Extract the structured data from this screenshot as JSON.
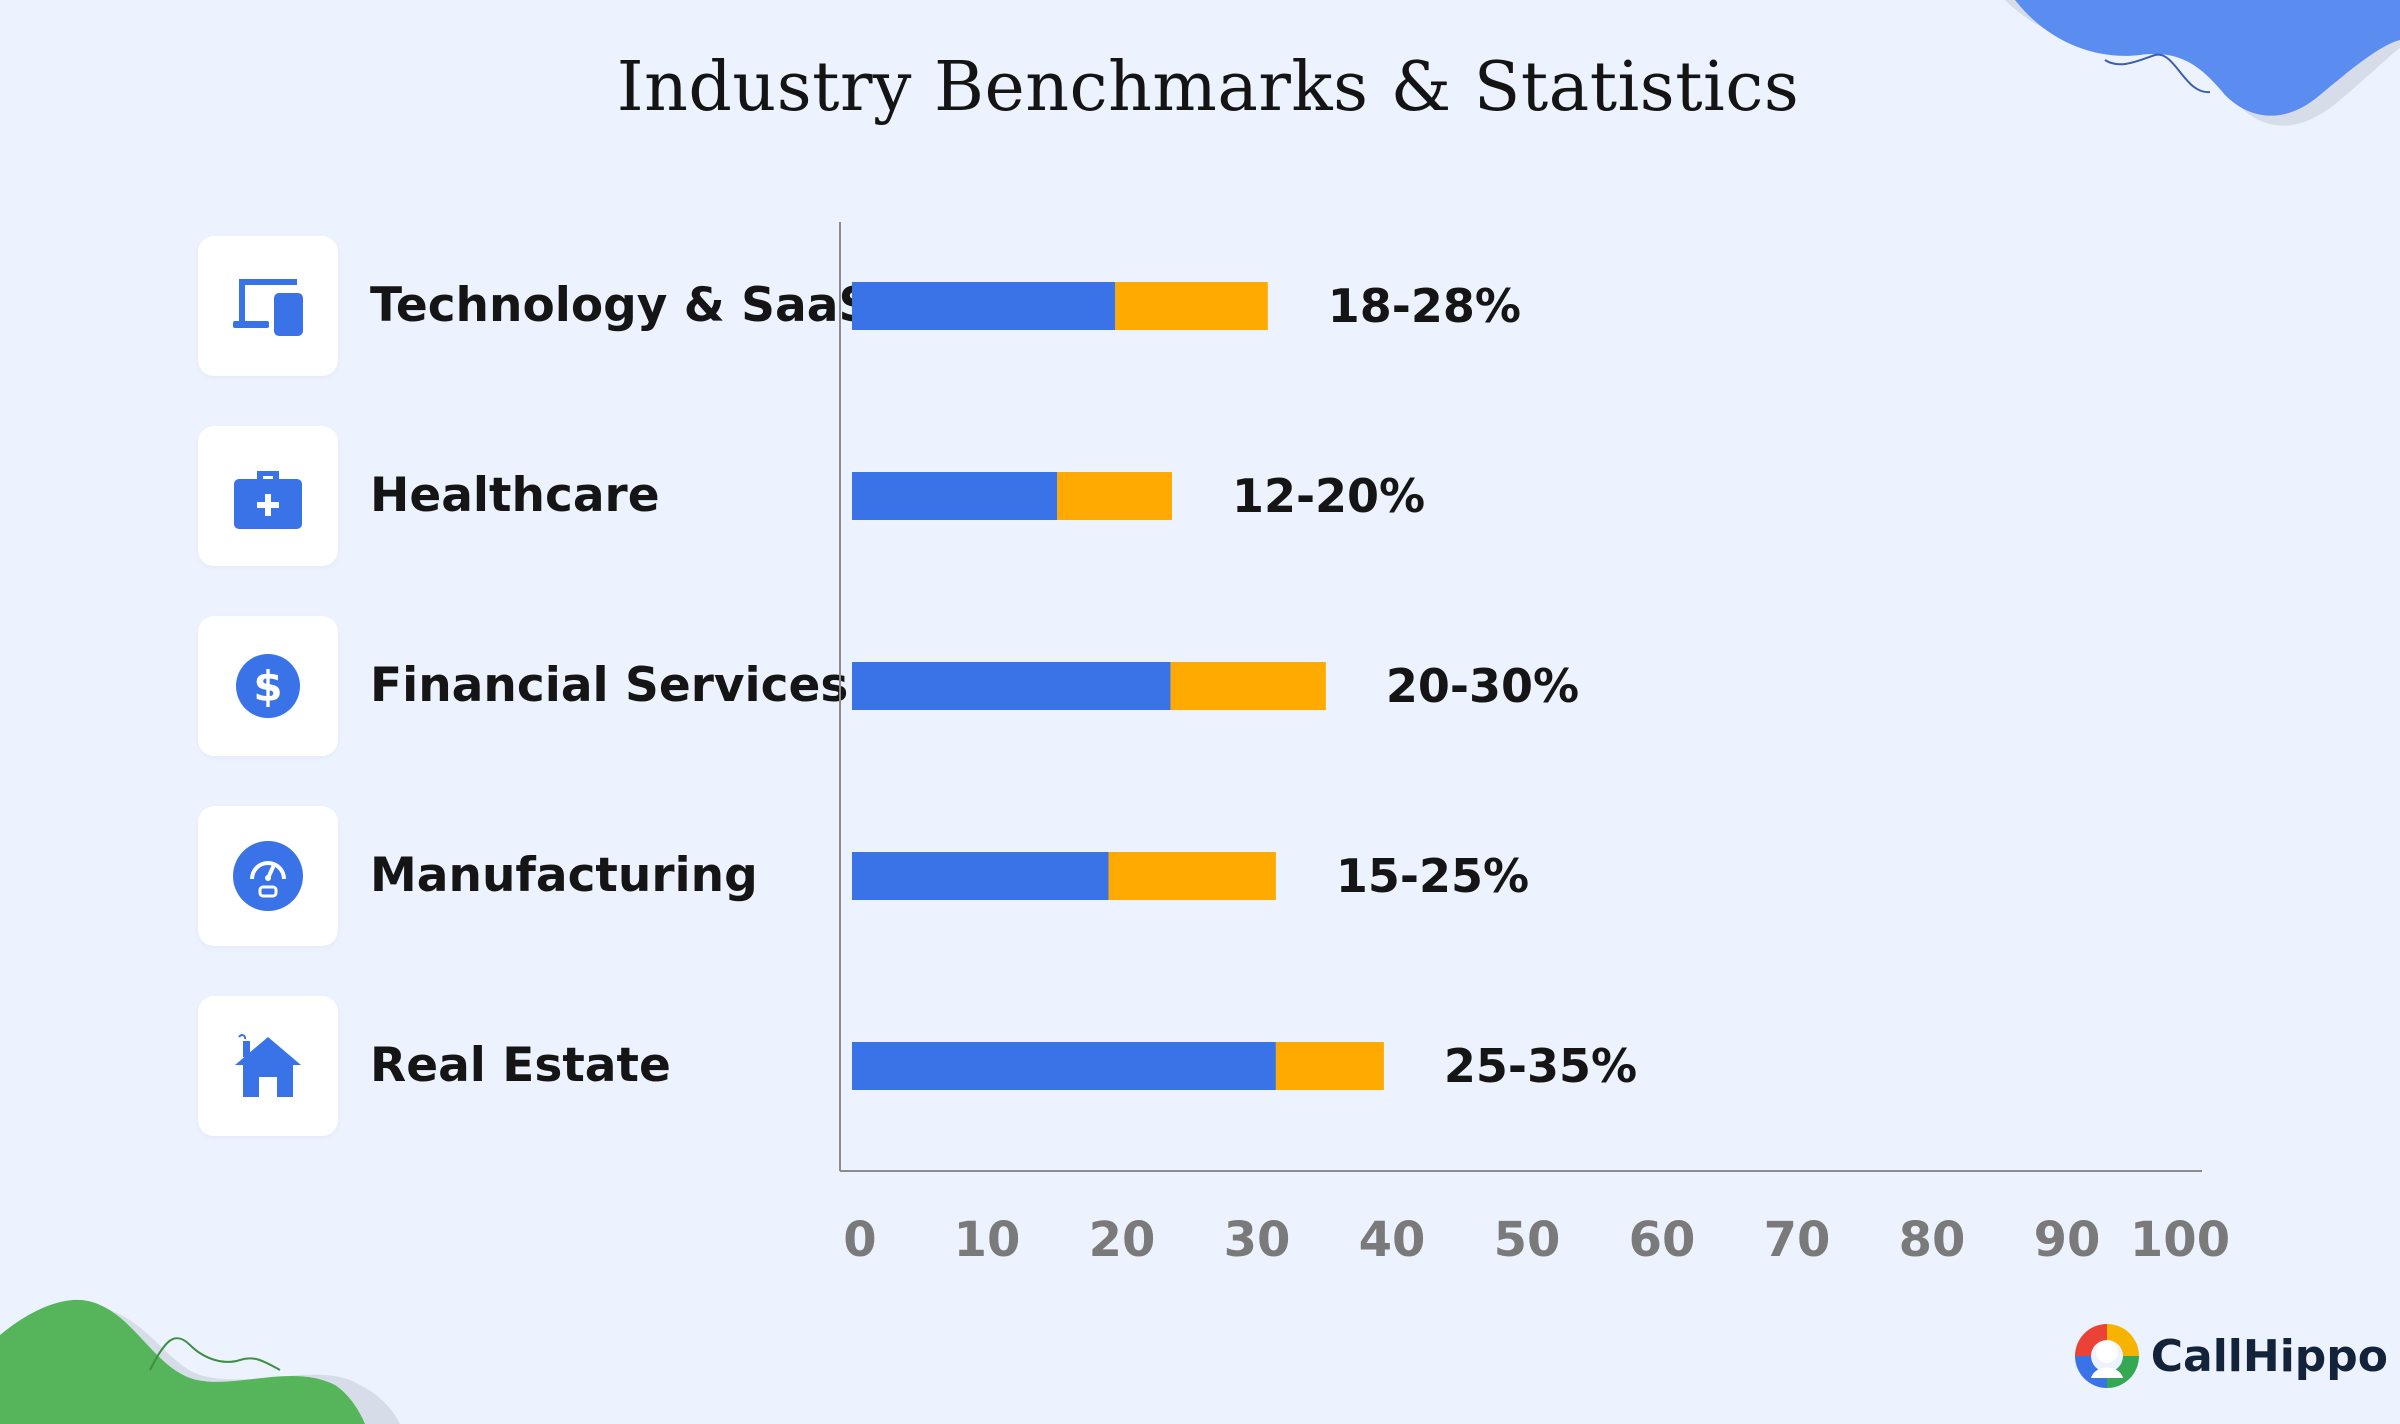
{
  "title": "Industry Benchmarks & Statistics",
  "brand": {
    "name": "CallHippo"
  },
  "colors": {
    "background": "#edf3fe",
    "low_segment": "#3a73e8",
    "high_segment": "#ffaa00",
    "icon_blue": "#3a73e8",
    "axis": "#8c8c8c",
    "blob_blue": "#5a8def",
    "blob_green": "#56b45a"
  },
  "categories": [
    {
      "label": "Technology & SaaS",
      "icon": "devices-icon",
      "range_label": "18-28%"
    },
    {
      "label": "Healthcare",
      "icon": "medical-kit-icon",
      "range_label": "12-20%"
    },
    {
      "label": "Financial Services",
      "icon": "dollar-icon",
      "range_label": "20-30%"
    },
    {
      "label": "Manufacturing",
      "icon": "gauge-icon",
      "range_label": "15-25%"
    },
    {
      "label": "Real Estate",
      "icon": "house-icon",
      "range_label": "25-35%"
    }
  ],
  "chart_data": {
    "type": "bar",
    "orientation": "horizontal",
    "stacked": true,
    "categories": [
      "Technology & SaaS",
      "Healthcare",
      "Financial Services",
      "Manufacturing",
      "Real Estate"
    ],
    "series": [
      {
        "values": [
          19.5,
          15.2,
          23.6,
          19.0,
          31.4
        ],
        "color": "#3a73e8"
      },
      {
        "values": [
          11.3,
          8.5,
          11.5,
          12.4,
          8.0
        ],
        "color": "#ffaa00"
      }
    ],
    "data_labels": [
      "18-28%",
      "12-20%",
      "20-30%",
      "15-25%",
      "25-35%"
    ],
    "xlim": [
      0,
      100
    ],
    "xticks": [
      "0",
      "10",
      "20",
      "30",
      "40",
      "50",
      "60",
      "70",
      "80",
      "90",
      "100"
    ],
    "grid": false,
    "legend": "none"
  }
}
